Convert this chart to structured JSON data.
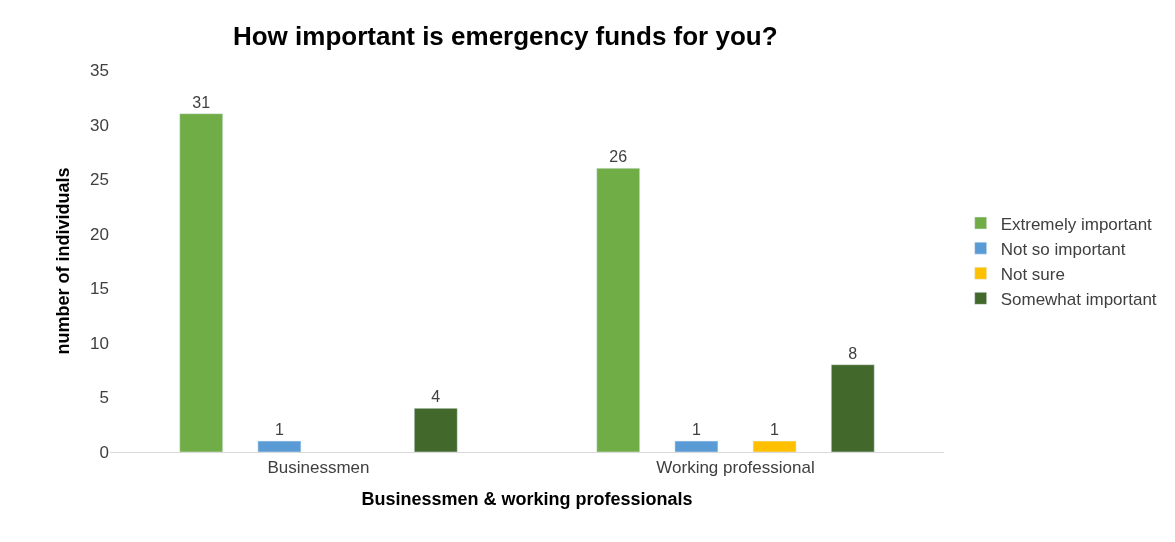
{
  "chart_data": {
    "type": "bar",
    "title": "How important is emergency funds for you?",
    "xlabel": "Businessmen & working professionals",
    "ylabel": "number of individuals",
    "categories": [
      "Businessmen",
      "Working professional"
    ],
    "series": [
      {
        "name": "Extremely important",
        "color": "#70ad47",
        "values": [
          31,
          26
        ]
      },
      {
        "name": "Not so important",
        "color": "#5b9bd5",
        "values": [
          1,
          1
        ]
      },
      {
        "name": "Not sure",
        "color": "#ffc000",
        "values": [
          null,
          1
        ]
      },
      {
        "name": "Somewhat important",
        "color": "#43682b",
        "values": [
          4,
          8
        ]
      }
    ],
    "ylim": [
      0,
      35
    ],
    "yticks": [
      0,
      5,
      10,
      15,
      20,
      25,
      30,
      35
    ],
    "data_labels": true,
    "legend": "right"
  }
}
